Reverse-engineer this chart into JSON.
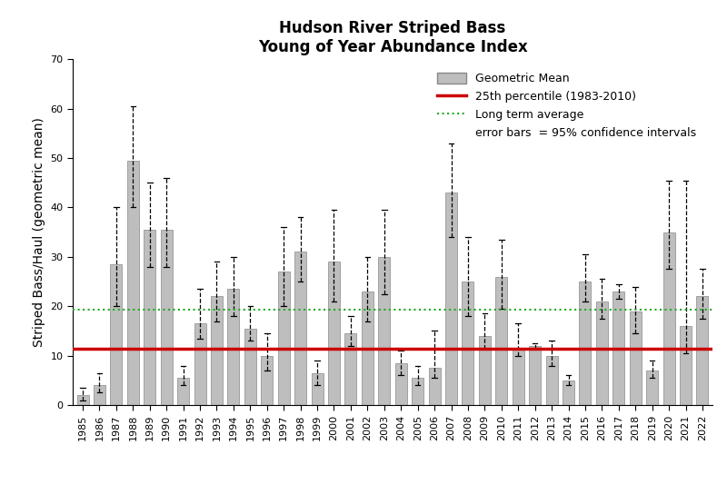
{
  "title_line1": "Hudson River Striped Bass",
  "title_line2": "Young of Year Abundance Index",
  "ylabel": "Striped Bass/Haul (geometric mean)",
  "bar_color": "#bebebe",
  "bar_edgecolor": "#888888",
  "percentile_line": 11.5,
  "percentile_color": "#cc0000",
  "long_term_avg": 19.3,
  "long_term_color": "#22aa22",
  "years": [
    1985,
    1986,
    1987,
    1988,
    1989,
    1990,
    1991,
    1992,
    1993,
    1994,
    1995,
    1996,
    1997,
    1998,
    1999,
    2000,
    2001,
    2002,
    2003,
    2004,
    2005,
    2006,
    2007,
    2008,
    2009,
    2010,
    2011,
    2012,
    2013,
    2014,
    2015,
    2016,
    2017,
    2018,
    2019,
    2020,
    2021,
    2022
  ],
  "means": [
    2.0,
    4.0,
    28.5,
    49.5,
    35.5,
    35.5,
    5.5,
    16.5,
    22.0,
    23.5,
    15.5,
    10.0,
    27.0,
    31.0,
    6.5,
    29.0,
    14.5,
    23.0,
    30.0,
    8.5,
    5.5,
    7.5,
    43.0,
    25.0,
    14.0,
    26.0,
    11.5,
    12.0,
    10.0,
    5.0,
    25.0,
    21.0,
    23.0,
    19.0,
    7.0,
    35.0,
    16.0,
    22.0
  ],
  "err_up": [
    1.5,
    2.5,
    11.5,
    11.0,
    9.5,
    10.5,
    2.5,
    7.0,
    7.0,
    6.5,
    4.5,
    4.5,
    9.0,
    7.0,
    2.5,
    10.5,
    3.5,
    7.0,
    9.5,
    2.5,
    2.5,
    7.5,
    10.0,
    9.0,
    4.5,
    7.5,
    5.0,
    0.5,
    3.0,
    1.0,
    5.5,
    4.5,
    1.5,
    5.0,
    2.0,
    10.5,
    29.5,
    5.5
  ],
  "err_down": [
    1.0,
    1.5,
    8.5,
    9.5,
    7.5,
    7.5,
    1.5,
    3.0,
    5.0,
    5.5,
    2.5,
    3.0,
    7.0,
    6.0,
    2.5,
    8.0,
    2.5,
    6.0,
    7.5,
    2.5,
    1.5,
    2.0,
    9.0,
    7.0,
    2.5,
    6.5,
    1.5,
    0.5,
    2.0,
    1.0,
    4.0,
    3.5,
    1.5,
    4.5,
    1.5,
    7.5,
    5.5,
    4.5
  ],
  "ylim": [
    0,
    70
  ],
  "yticks": [
    0,
    10,
    20,
    30,
    40,
    50,
    60,
    70
  ],
  "legend_gm_label": "Geometric Mean",
  "legend_pct_label": "25th percentile (1983-2010)",
  "legend_lta_label": "Long term average",
  "legend_eb_label": "error bars  = 95% confidence intervals",
  "background_color": "#ffffff",
  "title_fontsize": 12,
  "axis_fontsize": 10,
  "tick_fontsize": 8,
  "legend_fontsize": 9
}
